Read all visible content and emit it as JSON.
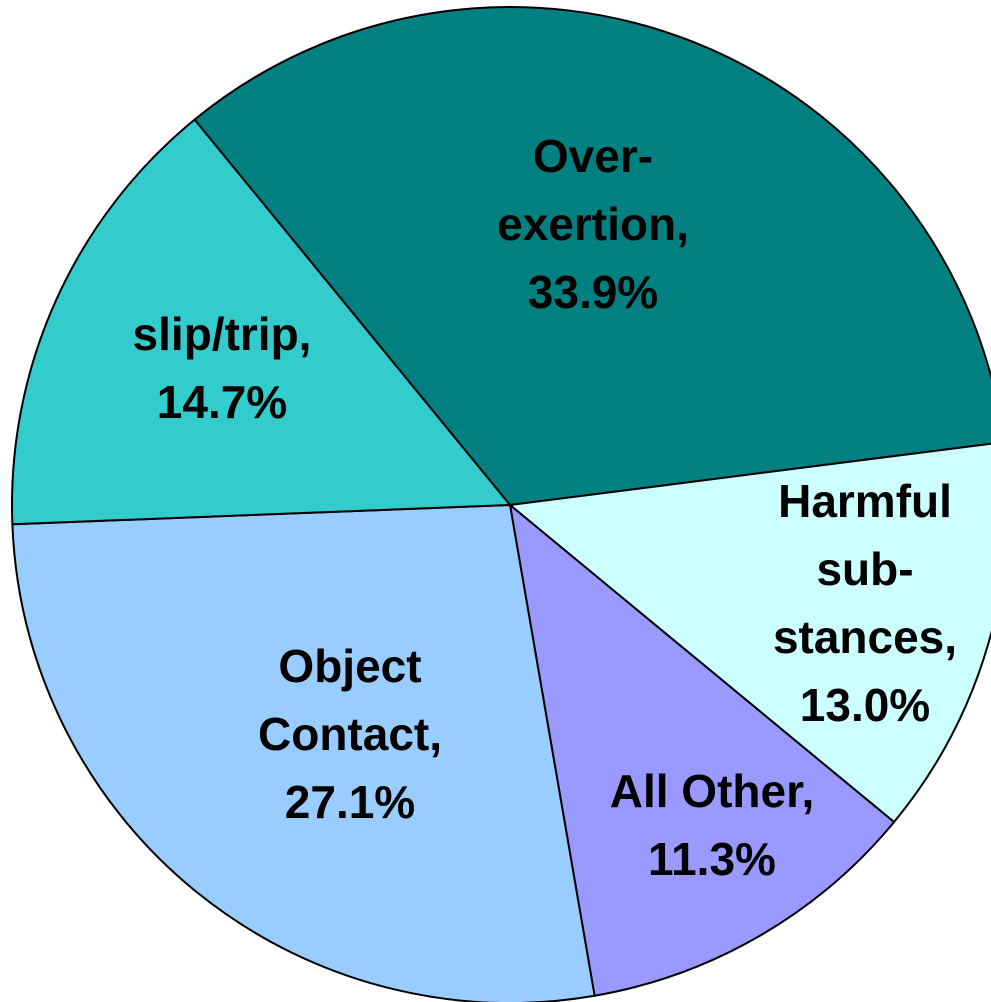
{
  "chart_data": {
    "type": "pie",
    "categories": [
      "Over-\nexertion,",
      "Harmful\nsub-\nstances,",
      "All Other,",
      "Object\nContact,",
      "slip/trip,"
    ],
    "values": [
      33.9,
      13.0,
      11.3,
      27.1,
      14.7
    ],
    "value_labels": [
      "33.9%",
      "13.0%",
      "11.3%",
      "27.1%",
      "14.7%"
    ],
    "colors": [
      "#008080",
      "#ccffff",
      "#9999ff",
      "#99ccff",
      "#33cccc"
    ]
  }
}
